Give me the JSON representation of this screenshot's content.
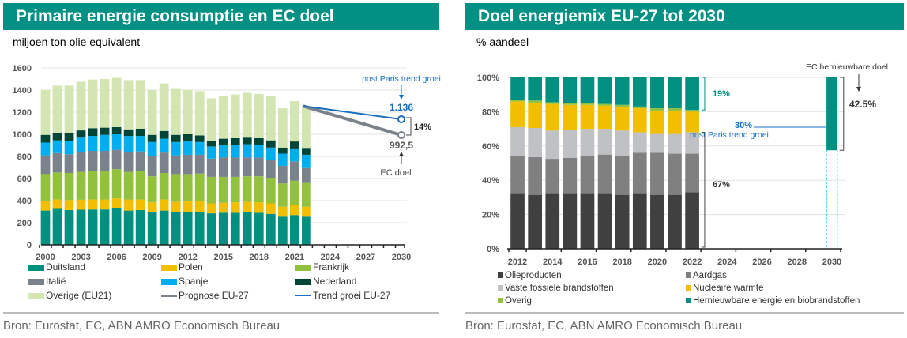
{
  "left": {
    "title": "Primaire energie consumptie en EC doel",
    "subtitle": "miljoen ton olie equivalent",
    "source": "Bron: Eurostat, EC, ABN AMRO Economisch Bureau",
    "annotations": {
      "trend_label": "post Paris trend groei",
      "trend_value": "1.136",
      "gap_label": "14%",
      "ec_value": "992,5",
      "ec_label": "EC doel"
    },
    "legend": [
      {
        "label": "Duitsland",
        "color": "#00907F",
        "kind": "box"
      },
      {
        "label": "Polen",
        "color": "#F2BF00",
        "kind": "box"
      },
      {
        "label": "Frankrijk",
        "color": "#92C13E",
        "kind": "box"
      },
      {
        "label": "Italië",
        "color": "#7A838C",
        "kind": "box"
      },
      {
        "label": "Spanje",
        "color": "#00AEEF",
        "kind": "box"
      },
      {
        "label": "Nederland",
        "color": "#004536",
        "kind": "box"
      },
      {
        "label": "Overige (EU21)",
        "color": "#D3E6B2",
        "kind": "box"
      },
      {
        "label": "Prognose EU-27",
        "color": "#7A838C",
        "kind": "line"
      },
      {
        "label": "Trend groei EU-27",
        "color": "#1A6FC2",
        "kind": "thinline"
      }
    ]
  },
  "right": {
    "title": "Doel energiemix EU-27 tot 2030",
    "subtitle": "% aandeel",
    "source": "Bron: Eurostat, EC, ABN AMRO Economisch Bureau",
    "annotations": {
      "renew_share": "19%",
      "fossil_share": "67%",
      "paris_value": "30%",
      "paris_label": "post Paris trend groei",
      "ec_target_label": "EC hernieuwbare doel",
      "ec_target_value": "42.5%"
    },
    "legend": [
      {
        "label": "Olieproducten",
        "color": "#404040"
      },
      {
        "label": "Aardgas",
        "color": "#808080"
      },
      {
        "label": "Vaste fossiele brandstoffen",
        "color": "#BFC1C4"
      },
      {
        "label": "Nucleaire warmte",
        "color": "#F2BF00"
      },
      {
        "label": "Overig",
        "color": "#92C13E"
      },
      {
        "label": "Hernieuwbare energie en biobrandstoffen",
        "color": "#00907F"
      }
    ]
  },
  "chart_data": [
    {
      "type": "bar",
      "stacked": true,
      "title": "Primaire energie consumptie en EC doel",
      "ylabel": "miljoen ton olie equivalent",
      "ylim": [
        0,
        1600
      ],
      "yticks": [
        0,
        200,
        400,
        600,
        800,
        1000,
        1200,
        1400,
        1600
      ],
      "xlim": [
        2000,
        2030
      ],
      "xticks": [
        2000,
        2003,
        2006,
        2009,
        2012,
        2015,
        2018,
        2021,
        2024,
        2027,
        2030
      ],
      "grid": true,
      "legend_position": "bottom",
      "categories": [
        2000,
        2001,
        2002,
        2003,
        2004,
        2005,
        2006,
        2007,
        2008,
        2009,
        2010,
        2011,
        2012,
        2013,
        2014,
        2015,
        2016,
        2017,
        2018,
        2019,
        2020,
        2021,
        2022
      ],
      "series": [
        {
          "name": "Duitsland",
          "color": "#00907F",
          "values": [
            310,
            325,
            315,
            318,
            320,
            320,
            330,
            310,
            315,
            295,
            310,
            300,
            300,
            300,
            285,
            290,
            290,
            295,
            290,
            280,
            255,
            270,
            255
          ]
        },
        {
          "name": "Polen",
          "color": "#F2BF00",
          "values": [
            90,
            85,
            90,
            90,
            90,
            90,
            90,
            100,
            95,
            90,
            100,
            90,
            95,
            95,
            90,
            90,
            95,
            95,
            95,
            95,
            90,
            90,
            90
          ]
        },
        {
          "name": "Frankrijk",
          "color": "#92C13E",
          "values": [
            240,
            245,
            245,
            252,
            260,
            260,
            265,
            250,
            260,
            235,
            240,
            250,
            245,
            250,
            240,
            235,
            230,
            230,
            235,
            230,
            210,
            220,
            215
          ]
        },
        {
          "name": "Italië",
          "color": "#7A838C",
          "values": [
            170,
            175,
            170,
            180,
            180,
            180,
            175,
            180,
            175,
            180,
            185,
            170,
            175,
            170,
            165,
            175,
            175,
            170,
            170,
            165,
            160,
            175,
            135
          ]
        },
        {
          "name": "Spanje",
          "color": "#00AEEF",
          "values": [
            115,
            115,
            120,
            130,
            135,
            145,
            140,
            145,
            140,
            130,
            125,
            120,
            120,
            115,
            110,
            115,
            115,
            120,
            115,
            110,
            110,
            110,
            120
          ]
        },
        {
          "name": "Nederland",
          "color": "#004536",
          "values": [
            70,
            70,
            70,
            65,
            70,
            65,
            65,
            60,
            65,
            65,
            70,
            65,
            65,
            60,
            50,
            55,
            60,
            60,
            60,
            65,
            55,
            70,
            55
          ]
        },
        {
          "name": "Overige (EU21)",
          "color": "#D3E6B2",
          "values": [
            405,
            425,
            430,
            440,
            440,
            440,
            445,
            445,
            440,
            405,
            430,
            415,
            400,
            400,
            385,
            385,
            395,
            405,
            400,
            400,
            355,
            365,
            385
          ]
        }
      ],
      "lines": [
        {
          "name": "Prognose EU-27",
          "color": "#7A838C",
          "points": [
            [
              2022,
              1255
            ],
            [
              2030,
              992.5
            ]
          ]
        },
        {
          "name": "Trend groei EU-27",
          "color": "#1A6FC2",
          "points": [
            [
              2022,
              1255
            ],
            [
              2030,
              1136
            ]
          ]
        }
      ],
      "annotations": [
        "post Paris trend groei",
        "1.136",
        "14%",
        "992,5",
        "EC doel"
      ]
    },
    {
      "type": "bar",
      "stacked": true,
      "title": "Doel energiemix EU-27 tot 2030",
      "ylabel": "% aandeel",
      "ylim": [
        0,
        100
      ],
      "yticks": [
        0,
        20,
        40,
        60,
        80,
        100
      ],
      "xlim": [
        2012,
        2030
      ],
      "xticks": [
        2012,
        2014,
        2016,
        2018,
        2020,
        2022,
        2024,
        2026,
        2028,
        2030
      ],
      "grid": true,
      "legend_position": "bottom",
      "categories": [
        2012,
        2013,
        2014,
        2015,
        2016,
        2017,
        2018,
        2019,
        2020,
        2021,
        2022
      ],
      "series": [
        {
          "name": "Olieproducten",
          "color": "#404040",
          "values": [
            32,
            31.5,
            32,
            32,
            32,
            32,
            31.5,
            32,
            31.5,
            31.5,
            33
          ]
        },
        {
          "name": "Aardgas",
          "color": "#808080",
          "values": [
            22,
            22,
            20.5,
            21,
            22,
            23,
            22.5,
            24,
            24.5,
            24,
            22.5
          ]
        },
        {
          "name": "Vaste fossiele brandstoffen",
          "color": "#BFC1C4",
          "values": [
            17,
            17,
            16.5,
            16.5,
            16,
            15,
            15,
            12,
            11,
            11.5,
            12.5
          ]
        },
        {
          "name": "Nucleaire warmte",
          "color": "#F2BF00",
          "values": [
            15,
            14.5,
            15.5,
            14.5,
            14,
            13.5,
            13.5,
            14,
            13.5,
            13.5,
            12
          ]
        },
        {
          "name": "Overig",
          "color": "#92C13E",
          "values": [
            1,
            1.5,
            1,
            1,
            1,
            1,
            1.5,
            1,
            1.5,
            1.5,
            1
          ]
        },
        {
          "name": "Hernieuwbare energie en biobrandstoffen",
          "color": "#00907F",
          "values": [
            13,
            13.5,
            14.5,
            15,
            15,
            15.5,
            16,
            17,
            18,
            18,
            19
          ]
        }
      ],
      "target_bar": {
        "year": 2030,
        "name": "EC hernieuwbare doel",
        "value": 42.5,
        "color": "#00907F"
      },
      "paris_trend_2030": 30,
      "annotations": [
        "19%",
        "67%",
        "30%",
        "post Paris trend groei",
        "EC hernieuwbare doel",
        "42.5%"
      ]
    }
  ]
}
